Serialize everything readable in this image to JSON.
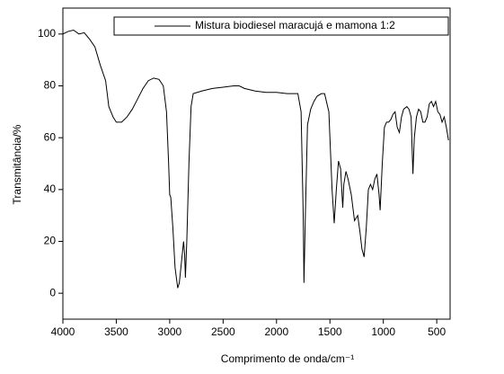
{
  "chart_data": {
    "type": "line",
    "x_label": "Comprimento de onda/cm⁻¹",
    "y_label": "Transmitância/%",
    "xlim": [
      4000,
      375
    ],
    "ylim": [
      -10,
      110
    ],
    "xticks": [
      4000,
      3500,
      3000,
      2500,
      2000,
      1500,
      1000,
      500
    ],
    "yticks": [
      0,
      20,
      40,
      60,
      80,
      100
    ],
    "legend": "upper right",
    "x": [
      4000,
      3950,
      3900,
      3850,
      3800,
      3750,
      3700,
      3650,
      3600,
      3570,
      3530,
      3500,
      3450,
      3400,
      3350,
      3300,
      3250,
      3200,
      3150,
      3100,
      3060,
      3030,
      3010,
      3000,
      2990,
      2970,
      2950,
      2925,
      2910,
      2890,
      2870,
      2860,
      2853,
      2840,
      2820,
      2800,
      2780,
      2700,
      2600,
      2500,
      2400,
      2350,
      2300,
      2200,
      2100,
      2000,
      1900,
      1800,
      1770,
      1750,
      1743,
      1730,
      1710,
      1680,
      1650,
      1620,
      1580,
      1550,
      1510,
      1480,
      1460,
      1440,
      1420,
      1400,
      1380,
      1370,
      1350,
      1330,
      1300,
      1270,
      1240,
      1220,
      1200,
      1180,
      1160,
      1140,
      1120,
      1100,
      1080,
      1060,
      1040,
      1030,
      1010,
      990,
      970,
      950,
      930,
      910,
      890,
      870,
      850,
      830,
      810,
      780,
      760,
      740,
      723,
      710,
      690,
      670,
      650,
      630,
      610,
      590,
      570,
      550,
      530,
      510,
      490,
      470,
      450,
      430,
      410,
      390
    ],
    "series": [
      {
        "name": "Mistura biodiesel maracujá e mamona 1:2",
        "color": "#000000",
        "values": [
          100,
          101,
          101.5,
          100,
          100.5,
          98,
          95,
          88,
          82,
          72,
          68,
          66,
          66,
          68,
          71,
          75,
          79,
          82,
          83,
          82.5,
          80,
          70,
          50,
          38,
          37,
          25,
          10,
          2,
          4,
          12,
          20,
          15,
          6,
          20,
          50,
          72,
          77,
          78,
          79,
          79.5,
          80,
          80,
          79,
          78,
          77.5,
          77.5,
          77,
          77,
          70,
          30,
          4,
          30,
          65,
          71,
          74,
          76,
          77,
          77,
          70,
          40,
          27,
          40,
          51,
          48,
          33,
          42,
          47,
          44,
          38,
          28,
          30,
          24,
          17,
          14,
          25,
          40,
          42,
          40,
          44,
          46,
          38,
          32,
          50,
          64,
          66,
          66,
          67,
          69,
          70,
          64,
          62,
          68,
          71,
          72,
          71,
          68,
          46,
          60,
          68,
          71,
          70,
          66,
          66,
          68,
          73,
          74,
          72,
          74,
          70,
          69,
          66,
          68,
          64,
          59
        ]
      }
    ]
  }
}
